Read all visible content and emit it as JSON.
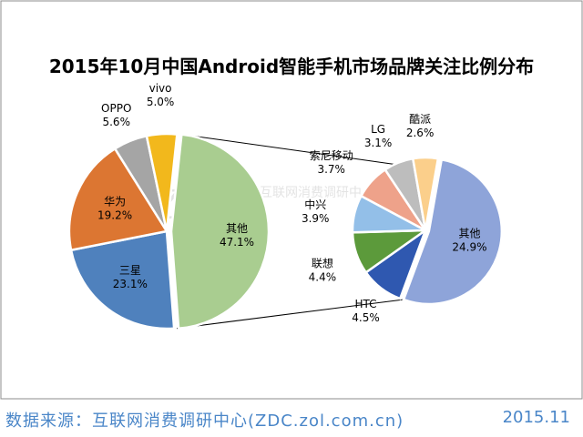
{
  "chart_data": {
    "type": "pie",
    "title": "2015年10月中国Android智能手机市场品牌关注比例分布",
    "main_pie": [
      {
        "label": "其他",
        "value": 47.1,
        "color": "#a9cd90"
      },
      {
        "label": "三星",
        "value": 23.1,
        "color": "#4f81bd"
      },
      {
        "label": "华为",
        "value": 19.2,
        "color": "#dc7632"
      },
      {
        "label": "OPPO",
        "value": 5.6,
        "color": "#a5a5a5"
      },
      {
        "label": "vivo",
        "value": 5.0,
        "color": "#f2b81c"
      }
    ],
    "sub_pie": [
      {
        "label": "其他",
        "value": 24.9,
        "color": "#8ea4d9"
      },
      {
        "label": "HTC",
        "value": 4.5,
        "color": "#2f58b0"
      },
      {
        "label": "联想",
        "value": 4.4,
        "color": "#5c9a3b"
      },
      {
        "label": "中兴",
        "value": 3.9,
        "color": "#93bfe8"
      },
      {
        "label": "索尼移动",
        "value": 3.7,
        "color": "#eea28a"
      },
      {
        "label": "LG",
        "value": 3.1,
        "color": "#bdbdbd"
      },
      {
        "label": "酷派",
        "value": 2.6,
        "color": "#fbcf8b"
      }
    ],
    "watermark": "ZDC",
    "watermark_sub": "互联网消费调研中心"
  },
  "footer": {
    "source": "数据来源：互联网消费调研中心(ZDC.zol.com.cn)",
    "date": "2015.11"
  }
}
